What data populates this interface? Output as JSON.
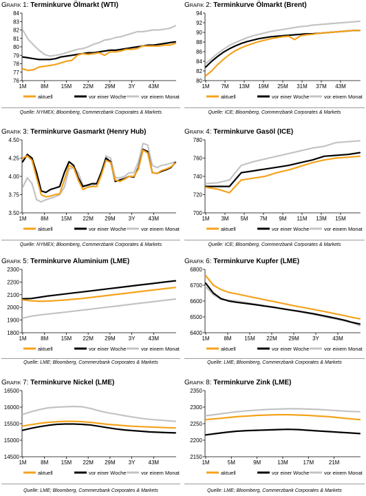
{
  "colors": {
    "aktuell": "#f5a21b",
    "woche": "#000000",
    "monat": "#c3c3c3"
  },
  "legend": [
    "aktuell",
    "vor einer Woche",
    "vor einem Monat"
  ],
  "chart_data": [
    {
      "type": "line",
      "label": "Grafik 1:",
      "title": "Terminkurve Ölmarkt (WTI)",
      "source": "Quelle: NYMEX; Bloomberg, Commerzbank Corporates & Markets",
      "ylim": [
        76,
        84
      ],
      "yticks": [
        76,
        77,
        78,
        79,
        80,
        81,
        82,
        83,
        84
      ],
      "xticks": [
        "1M",
        "8M",
        "15M",
        "22M",
        "29M",
        "3Y",
        "43M"
      ],
      "series": [
        {
          "name": "aktuell",
          "values": [
            77.4,
            77.2,
            77.3,
            77.6,
            77.7,
            77.8,
            77.9,
            78.1,
            78.3,
            78.4,
            79.0,
            79.2,
            79.1,
            79.2,
            79.3,
            79.0,
            79.4,
            79.4,
            79.5,
            79.7,
            79.7,
            79.8,
            80.1,
            80.1,
            80.1,
            80.1,
            80.2,
            80.2,
            80.4
          ]
        },
        {
          "name": "vor einer Woche",
          "values": [
            78.8,
            78.7,
            78.6,
            78.5,
            78.5,
            78.5,
            78.6,
            78.8,
            78.9,
            79.0,
            79.1,
            79.2,
            79.3,
            79.3,
            79.4,
            79.5,
            79.6,
            79.6,
            79.7,
            79.8,
            79.9,
            80.0,
            80.1,
            80.2,
            80.2,
            80.3,
            80.4,
            80.5,
            80.6
          ]
        },
        {
          "name": "vor einem Monat",
          "values": [
            82.0,
            80.9,
            80.2,
            79.6,
            79.1,
            78.9,
            79.0,
            79.1,
            79.3,
            79.5,
            79.7,
            79.8,
            80.0,
            80.3,
            80.5,
            80.8,
            80.9,
            81.1,
            81.2,
            81.4,
            81.6,
            81.8,
            81.8,
            81.9,
            82.0,
            82.0,
            82.1,
            82.2,
            82.5
          ]
        }
      ]
    },
    {
      "type": "line",
      "label": "Grafik 2:",
      "title": "Terminkurve Ölmarkt (Brent)",
      "source": "Quelle: ICE; Bloomberg, Commerzbank Corporates & Markets",
      "ylim": [
        80,
        94
      ],
      "yticks": [
        80,
        82,
        84,
        86,
        88,
        90,
        92,
        94
      ],
      "xticks": [
        "1M",
        "7M",
        "13M",
        "19M",
        "25M",
        "31M",
        "37M",
        "43M"
      ],
      "series": [
        {
          "name": "aktuell",
          "values": [
            81.0,
            82.0,
            83.3,
            84.4,
            85.4,
            86.2,
            86.8,
            87.3,
            87.7,
            88.1,
            88.4,
            88.7,
            88.9,
            89.1,
            89.2,
            88.5,
            89.3,
            89.5,
            89.6,
            89.8,
            89.9,
            90.0,
            90.1,
            90.2,
            90.3,
            90.4,
            90.4
          ]
        },
        {
          "name": "vor einer Woche",
          "values": [
            82.8,
            84.0,
            85.0,
            85.9,
            86.6,
            87.2,
            87.7,
            88.1,
            88.4,
            88.7,
            88.9,
            89.1,
            89.2,
            89.3,
            89.4,
            89.5,
            89.6,
            89.7,
            89.7,
            89.8,
            89.9,
            90.0,
            90.1,
            90.2,
            90.3,
            90.4,
            90.4
          ]
        },
        {
          "name": "vor einem Monat",
          "values": [
            83.5,
            84.6,
            85.6,
            86.5,
            87.3,
            87.9,
            88.4,
            88.9,
            89.3,
            89.6,
            89.9,
            90.2,
            90.4,
            90.6,
            90.8,
            91.0,
            91.2,
            91.3,
            91.5,
            91.6,
            91.7,
            91.8,
            91.9,
            92.0,
            92.1,
            92.2,
            92.3
          ]
        }
      ]
    },
    {
      "type": "line",
      "label": "Grafik 3:",
      "title": "Terminkurve Gasmarkt (Henry Hub)",
      "source": "Quelle: NYMEX; Bloomberg, Commerzbank Corporates & Markets",
      "ylim": [
        3.5,
        4.5
      ],
      "yticks": [
        3.5,
        3.75,
        4.0,
        4.25,
        4.5
      ],
      "ytick_labels": [
        "3.50",
        "3.75",
        "4.00",
        "4.25",
        "4.50"
      ],
      "xticks": [
        "1M",
        "8M",
        "15M",
        "22M",
        "29M",
        "3Y",
        "43M"
      ],
      "series": [
        {
          "name": "aktuell",
          "values": [
            4.25,
            4.28,
            4.22,
            3.98,
            3.75,
            3.72,
            3.73,
            3.75,
            3.76,
            3.95,
            4.15,
            4.12,
            3.95,
            3.82,
            3.85,
            3.86,
            3.86,
            4.02,
            4.22,
            4.19,
            3.95,
            3.93,
            3.96,
            4.0,
            4.0,
            4.1,
            4.36,
            4.32,
            4.05,
            4.04,
            4.08,
            4.1,
            4.13,
            4.18
          ]
        },
        {
          "name": "vor einer Woche",
          "values": [
            4.2,
            4.3,
            4.25,
            4.05,
            3.8,
            3.78,
            3.82,
            3.84,
            3.86,
            4.05,
            4.2,
            4.15,
            3.98,
            3.86,
            3.88,
            3.9,
            3.9,
            4.06,
            4.25,
            4.2,
            3.93,
            3.95,
            3.97,
            4.0,
            3.99,
            4.12,
            4.37,
            4.34,
            4.05,
            4.04,
            4.07,
            4.09,
            4.12,
            4.19
          ]
        },
        {
          "name": "vor einem Monat",
          "values": [
            3.85,
            3.98,
            3.9,
            3.68,
            3.65,
            3.68,
            3.7,
            3.72,
            3.75,
            3.85,
            4.1,
            4.12,
            4.05,
            3.88,
            3.87,
            3.87,
            3.9,
            4.05,
            4.28,
            4.25,
            3.98,
            3.98,
            4.0,
            4.05,
            4.05,
            4.2,
            4.45,
            4.43,
            4.15,
            4.12,
            4.15,
            4.16,
            4.18,
            4.2
          ]
        }
      ]
    },
    {
      "type": "line",
      "label": "Grafik 4:",
      "title": "Terminkurve Gasöl (ICE)",
      "source": "Quelle: ICE; Bloomberg, Commerzbank Corporates & Markets",
      "ylim": [
        700,
        780
      ],
      "yticks": [
        700,
        720,
        740,
        760,
        780
      ],
      "xticks": [
        "1M",
        "3M",
        "5M",
        "7M",
        "9M",
        "11M",
        "13M",
        "15M"
      ],
      "series": [
        {
          "name": "aktuell",
          "values": [
            728,
            726,
            722,
            736,
            738,
            740,
            744,
            747,
            751,
            755,
            758,
            760,
            761,
            762
          ]
        },
        {
          "name": "vor einer Woche",
          "values": [
            729,
            729,
            729,
            744,
            746,
            748,
            750,
            752,
            755,
            758,
            762,
            763,
            764,
            766
          ]
        },
        {
          "name": "vor einem Monat",
          "values": [
            732,
            733,
            736,
            752,
            756,
            759,
            762,
            765,
            768,
            771,
            773,
            777,
            778,
            779
          ]
        }
      ]
    },
    {
      "type": "line",
      "label": "Grafik 5:",
      "title": "Terminkurve Aluminium (LME)",
      "source": "Quelle: LME; Bloomberg, Commerzbank Corporates & Markets",
      "ylim": [
        1800,
        2300
      ],
      "yticks": [
        1800,
        1900,
        2000,
        2100,
        2200,
        2300
      ],
      "xticks": [
        "1M",
        "8M",
        "15M",
        "22M",
        "29M",
        "3Y",
        "43M"
      ],
      "series": [
        {
          "name": "aktuell",
          "values": [
            2060,
            2052,
            2048,
            2050,
            2054,
            2058,
            2064,
            2070,
            2078,
            2086,
            2094,
            2102,
            2110,
            2118,
            2126,
            2134,
            2142,
            2150,
            2157
          ]
        },
        {
          "name": "vor einer Woche",
          "values": [
            2068,
            2070,
            2080,
            2090,
            2098,
            2106,
            2114,
            2122,
            2130,
            2138,
            2146,
            2154,
            2162,
            2170,
            2178,
            2186,
            2194,
            2202,
            2210
          ]
        },
        {
          "name": "vor einem Monat",
          "values": [
            1915,
            1930,
            1940,
            1948,
            1955,
            1962,
            1970,
            1978,
            1986,
            1994,
            2002,
            2010,
            2018,
            2026,
            2034,
            2042,
            2050,
            2058,
            2066
          ]
        }
      ]
    },
    {
      "type": "line",
      "label": "Grafik 6:",
      "title": "Terminkurve Kupfer (LME)",
      "source": "Quelle: LME; Bloomberg, Commerzbank Corporates & Markets",
      "ylim": [
        6400,
        6800
      ],
      "yticks": [
        6400,
        6500,
        6600,
        6700,
        6800
      ],
      "xticks": [
        "1M",
        "8M",
        "15M",
        "22M",
        "29M",
        "3Y",
        "43M"
      ],
      "series": [
        {
          "name": "aktuell",
          "values": [
            6760,
            6700,
            6672,
            6655,
            6645,
            6635,
            6625,
            6615,
            6605,
            6595,
            6585,
            6575,
            6565,
            6556,
            6547,
            6538,
            6528,
            6518,
            6508,
            6497,
            6488
          ]
        },
        {
          "name": "vor einer Woche",
          "values": [
            6712,
            6650,
            6615,
            6600,
            6592,
            6586,
            6580,
            6573,
            6566,
            6559,
            6551,
            6543,
            6536,
            6528,
            6520,
            6510,
            6500,
            6490,
            6479,
            6465,
            6455
          ]
        },
        {
          "name": "vor einem Monat",
          "values": [
            6690,
            6640,
            6610,
            6605,
            6600,
            6592,
            6584,
            6576,
            6568,
            6560,
            6552,
            6543,
            6534,
            6525,
            6515,
            6505,
            6495,
            6486,
            6475,
            6465,
            6445
          ]
        }
      ]
    },
    {
      "type": "line",
      "label": "Grafik 7:",
      "title": "Terminkurve Nickel (LME)",
      "source": "Quelle: LME; Bloomberg, Commerzbank Corporates & Markets",
      "ylim": [
        14500,
        16500
      ],
      "yticks": [
        14500,
        15000,
        15500,
        16000,
        16500
      ],
      "xticks": [
        "1M",
        "8M",
        "15M",
        "22M",
        "29M",
        "3Y",
        "43M"
      ],
      "series": [
        {
          "name": "aktuell",
          "values": [
            15430,
            15470,
            15510,
            15540,
            15560,
            15570,
            15570,
            15560,
            15540,
            15510,
            15480,
            15460,
            15440,
            15420,
            15410,
            15400,
            15390,
            15380,
            15370
          ]
        },
        {
          "name": "vor einer Woche",
          "values": [
            15300,
            15360,
            15410,
            15450,
            15480,
            15490,
            15490,
            15480,
            15460,
            15420,
            15380,
            15340,
            15310,
            15290,
            15270,
            15250,
            15240,
            15230,
            15220
          ]
        },
        {
          "name": "vor einem Monat",
          "values": [
            15780,
            15860,
            15930,
            15980,
            16000,
            16010,
            16020,
            16010,
            15960,
            15890,
            15830,
            15790,
            15740,
            15700,
            15660,
            15630,
            15610,
            15590,
            15570
          ]
        }
      ]
    },
    {
      "type": "line",
      "label": "Grafik 8:",
      "title": "Terminkurve Zink (LME)",
      "source": "Quelle: LME; Bloomberg, Commerzbank Corporates & Markets",
      "ylim": [
        2150,
        2350
      ],
      "yticks": [
        2150,
        2200,
        2250,
        2300,
        2350
      ],
      "xticks": [
        "1M",
        "5M",
        "9M",
        "13M",
        "17M",
        "21M"
      ],
      "series": [
        {
          "name": "aktuell",
          "values": [
            2262,
            2265,
            2268,
            2271,
            2273,
            2275,
            2276,
            2277,
            2277,
            2276,
            2275,
            2273,
            2271,
            2268,
            2265,
            2262
          ]
        },
        {
          "name": "vor einer Woche",
          "values": [
            2216,
            2220,
            2224,
            2227,
            2229,
            2230,
            2231,
            2232,
            2233,
            2232,
            2230,
            2228,
            2226,
            2224,
            2222,
            2220
          ]
        },
        {
          "name": "vor einem Monat",
          "values": [
            2274,
            2278,
            2282,
            2286,
            2289,
            2291,
            2293,
            2294,
            2295,
            2295,
            2294,
            2293,
            2291,
            2289,
            2287,
            2286
          ]
        }
      ]
    }
  ]
}
